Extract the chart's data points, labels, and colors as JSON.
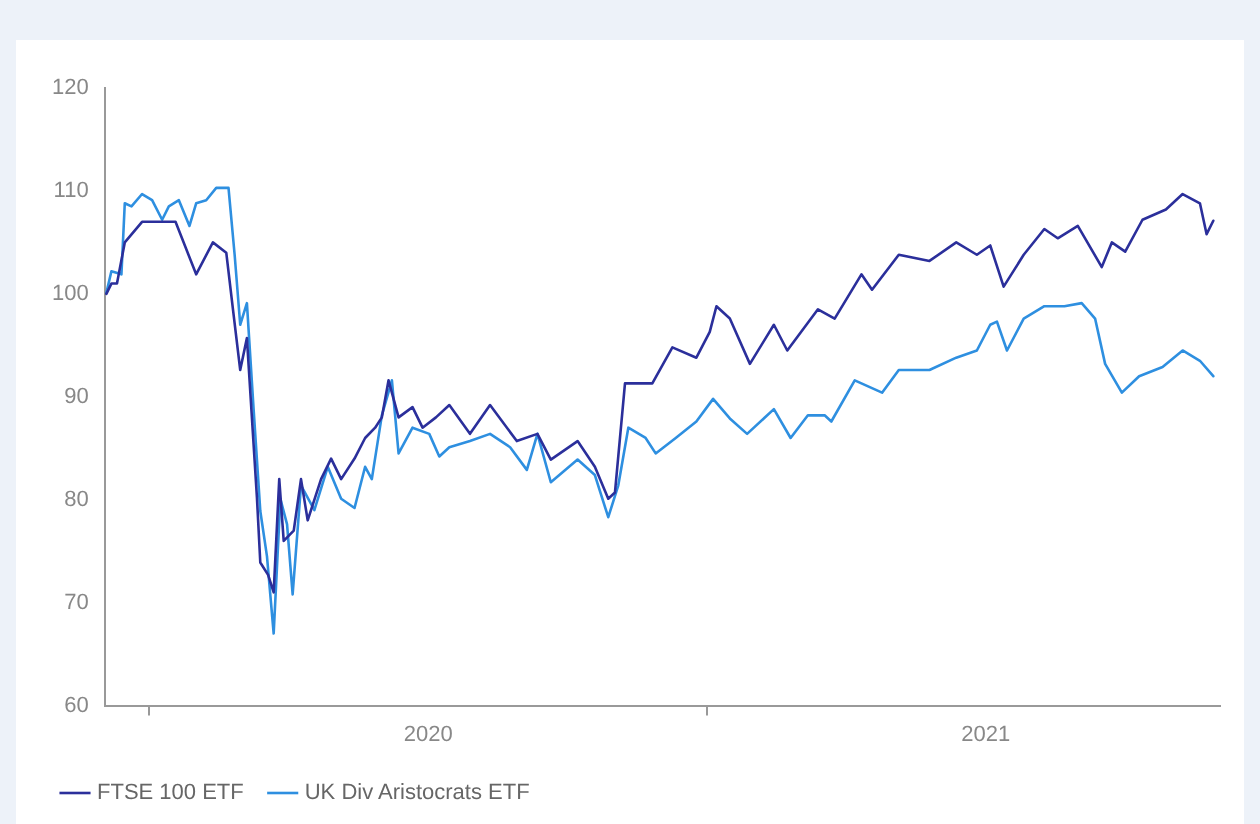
{
  "chart_data": {
    "type": "line",
    "xlim": [
      2019.92,
      2021.92
    ],
    "ylim": [
      60,
      120
    ],
    "yticks": [
      60,
      70,
      80,
      90,
      100,
      110,
      120
    ],
    "xticks": [
      {
        "value": 2020,
        "label": null
      },
      {
        "value": 2020.5,
        "label": "2020"
      },
      {
        "value": 2021,
        "label": null
      },
      {
        "value": 2021.5,
        "label": "2021"
      }
    ],
    "grid": false,
    "legend": "bottom left",
    "marker": "none",
    "line_style": "solid",
    "series": [
      {
        "name": "FTSE 100 ETF",
        "color": "#2b2f9b",
        "x": [
          2019.923,
          2019.932,
          2019.942,
          2019.956,
          2019.987,
          2020.047,
          2020.084,
          2020.114,
          2020.138,
          2020.15,
          2020.163,
          2020.175,
          2020.193,
          2020.199,
          2020.213,
          2020.223,
          2020.233,
          2020.241,
          2020.259,
          2020.272,
          2020.284,
          2020.308,
          2020.326,
          2020.344,
          2020.368,
          2020.387,
          2020.405,
          2020.417,
          2020.429,
          2020.447,
          2020.472,
          2020.49,
          2020.514,
          2020.538,
          2020.575,
          2020.611,
          2020.659,
          2020.696,
          2020.72,
          2020.768,
          2020.799,
          2020.823,
          2020.835,
          2020.853,
          2020.902,
          2020.938,
          2020.981,
          2021.005,
          2021.017,
          2021.041,
          2021.077,
          2021.12,
          2021.144,
          2021.199,
          2021.229,
          2021.277,
          2021.296,
          2021.344,
          2021.399,
          2021.447,
          2021.484,
          2021.508,
          2021.532,
          2021.568,
          2021.605,
          2021.629,
          2021.665,
          2021.708,
          2021.726,
          2021.75,
          2021.781,
          2021.823,
          2021.853,
          2021.884,
          2021.896,
          2021.908
        ],
        "values": [
          100,
          101,
          101,
          105,
          107,
          107,
          101.9,
          105,
          104,
          98.5,
          92.6,
          95.7,
          80.2,
          73.9,
          72.7,
          71,
          82,
          76,
          77,
          82,
          78,
          82,
          84,
          82,
          84,
          86,
          87,
          88,
          91.6,
          88,
          89,
          87,
          88,
          89.2,
          86.4,
          89.2,
          85.7,
          86.4,
          83.9,
          85.7,
          83.2,
          80.1,
          80.7,
          91.3,
          91.3,
          94.8,
          93.8,
          96.3,
          98.8,
          97.6,
          93.2,
          97,
          94.5,
          98.5,
          97.6,
          101.9,
          100.4,
          103.8,
          103.2,
          105,
          103.8,
          104.7,
          100.7,
          103.8,
          106.3,
          105.4,
          106.6,
          102.6,
          105,
          104.1,
          107.2,
          108.2,
          109.7,
          108.8,
          105.8,
          107.1
        ]
      },
      {
        "name": "UK Div Aristocrats ETF",
        "color": "#2e8fe0",
        "x": [
          2019.923,
          2019.932,
          2019.95,
          2019.956,
          2019.968,
          2019.987,
          2020.005,
          2020.023,
          2020.035,
          2020.053,
          2020.072,
          2020.084,
          2020.102,
          2020.12,
          2020.142,
          2020.153,
          2020.163,
          2020.175,
          2020.187,
          2020.199,
          2020.211,
          2020.223,
          2020.235,
          2020.247,
          2020.257,
          2020.272,
          2020.296,
          2020.32,
          2020.344,
          2020.368,
          2020.387,
          2020.399,
          2020.417,
          2020.435,
          2020.447,
          2020.472,
          2020.502,
          2020.52,
          2020.538,
          2020.575,
          2020.611,
          2020.647,
          2020.677,
          2020.696,
          2020.72,
          2020.768,
          2020.799,
          2020.823,
          2020.841,
          2020.859,
          2020.89,
          2020.908,
          2020.944,
          2020.981,
          2021.011,
          2021.041,
          2021.072,
          2021.12,
          2021.15,
          2021.181,
          2021.211,
          2021.223,
          2021.265,
          2021.314,
          2021.344,
          2021.399,
          2021.447,
          2021.484,
          2021.508,
          2021.52,
          2021.538,
          2021.568,
          2021.605,
          2021.641,
          2021.672,
          2021.696,
          2021.714,
          2021.744,
          2021.775,
          2021.817,
          2021.853,
          2021.884,
          2021.908
        ],
        "values": [
          100.1,
          102.2,
          101.9,
          108.8,
          108.5,
          109.7,
          109.1,
          107.2,
          108.5,
          109.1,
          106.6,
          108.8,
          109.1,
          110.3,
          110.3,
          103.8,
          97,
          99.1,
          88.8,
          78.9,
          74.5,
          67,
          80.1,
          77.6,
          70.8,
          81.4,
          79,
          83.2,
          80.1,
          79.2,
          83.2,
          82,
          88.2,
          91.6,
          84.5,
          87,
          86.4,
          84.2,
          85.1,
          85.7,
          86.4,
          85.1,
          82.9,
          86.4,
          81.7,
          83.9,
          82.4,
          78.3,
          81.4,
          87,
          86,
          84.5,
          86,
          87.6,
          89.8,
          87.9,
          86.4,
          88.8,
          86,
          88.2,
          88.2,
          87.6,
          91.6,
          90.4,
          92.6,
          92.6,
          93.8,
          94.5,
          97,
          97.3,
          94.5,
          97.6,
          98.8,
          98.8,
          99.1,
          97.6,
          93.2,
          90.4,
          92,
          92.9,
          94.5,
          93.5,
          92
        ]
      }
    ]
  }
}
